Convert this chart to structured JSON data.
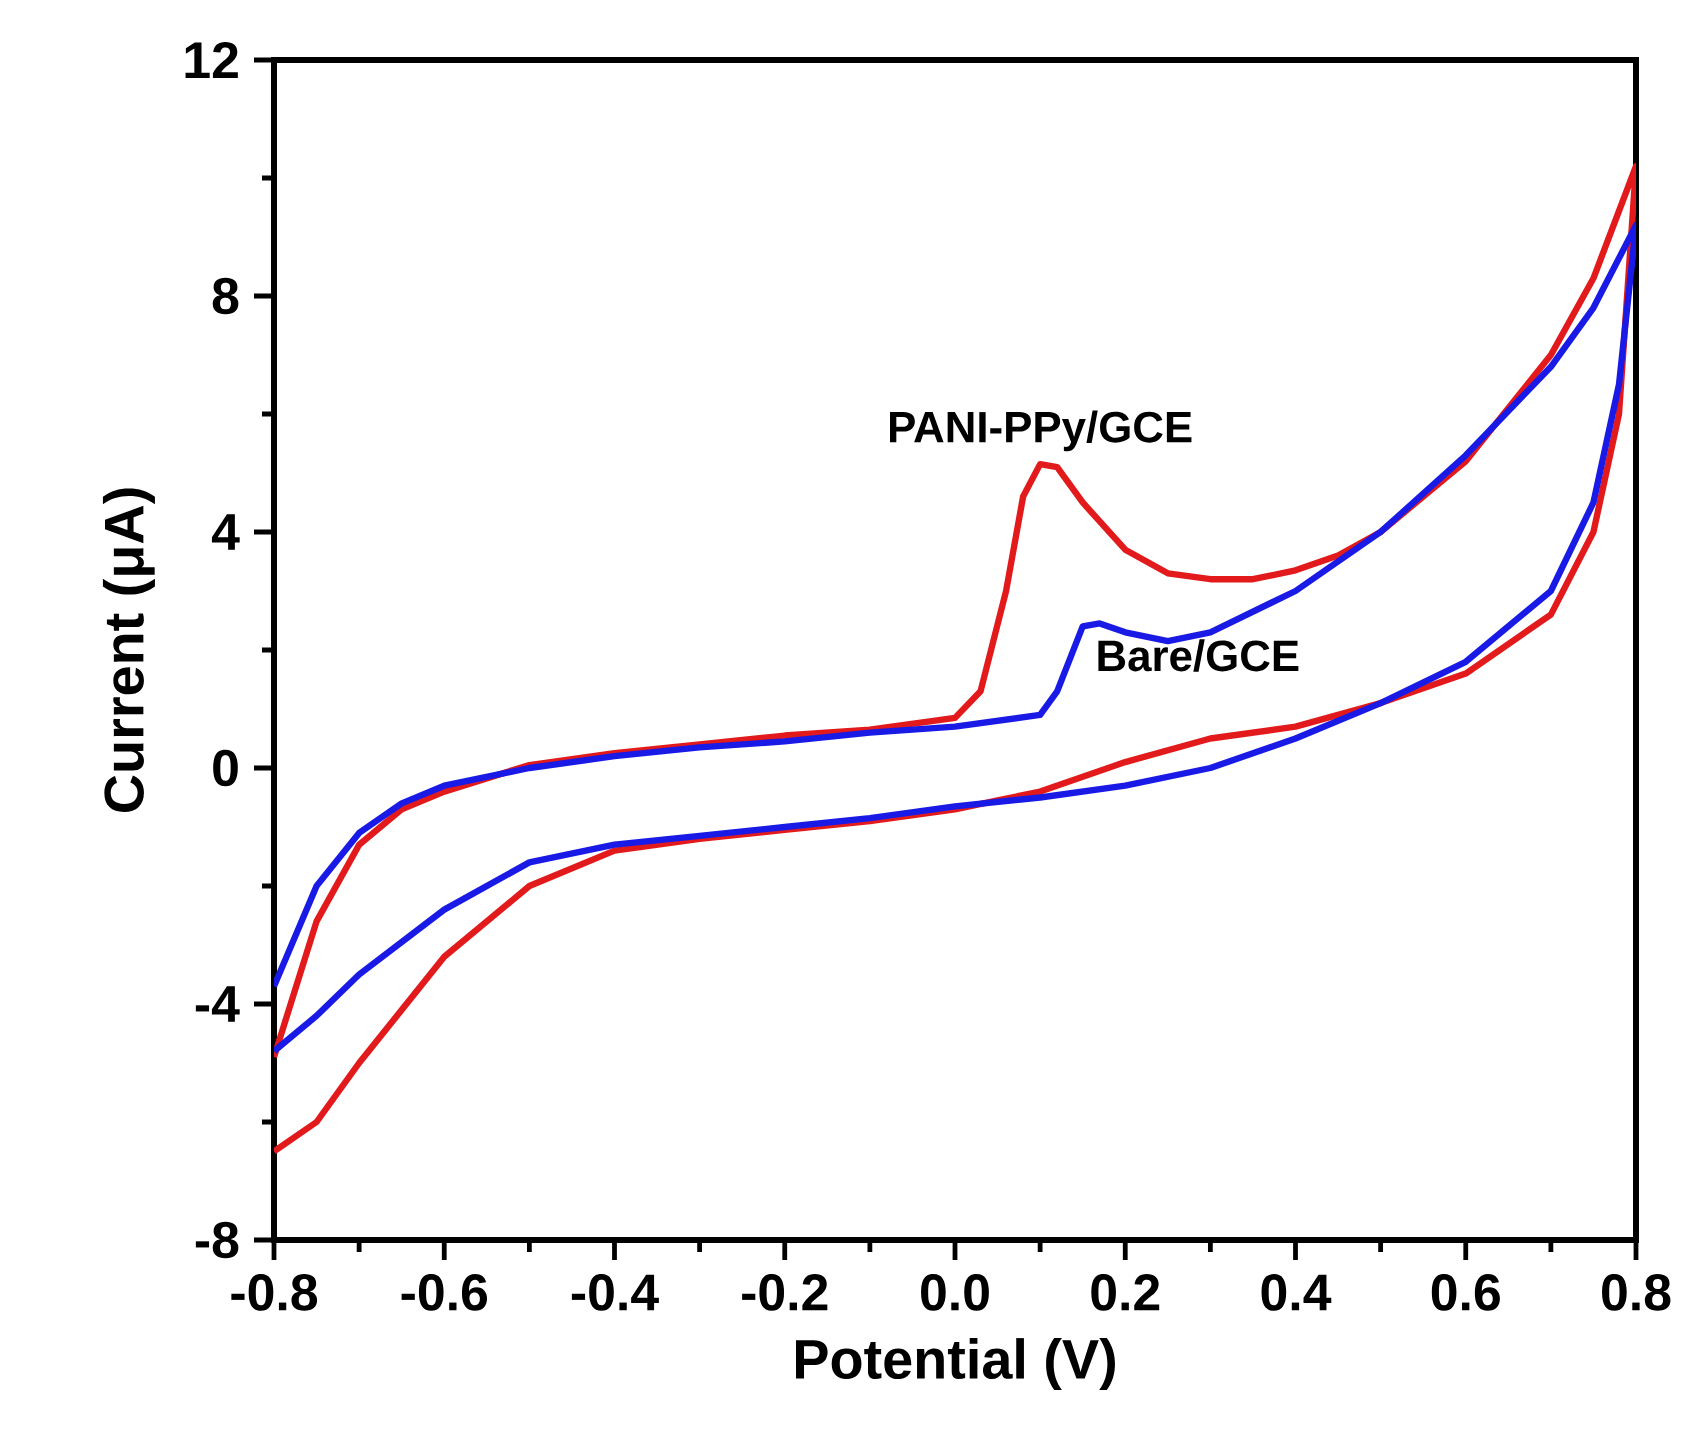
{
  "chart_data": {
    "type": "line",
    "xlabel": "Potential (V)",
    "ylabel": "Current (μA)",
    "xlim": [
      -0.8,
      0.8
    ],
    "ylim": [
      -8,
      12
    ],
    "xticks": [
      -0.8,
      -0.6,
      -0.4,
      -0.2,
      {
        "value": 0,
        "label": "0.0"
      },
      0.2,
      0.4,
      0.6,
      0.8
    ],
    "yticks": [
      -8,
      -4,
      0,
      4,
      8,
      12
    ],
    "grid": false,
    "marker": "none",
    "line_style": "solid",
    "series": [
      {
        "color": "#e31a1c",
        "x": [
          -0.8,
          -0.75,
          -0.7,
          -0.65,
          -0.6,
          -0.5,
          -0.4,
          -0.3,
          -0.2,
          -0.1,
          0.0,
          0.03,
          0.06,
          0.08,
          0.1,
          0.12,
          0.15,
          0.2,
          0.25,
          0.3,
          0.35,
          0.4,
          0.45,
          0.5,
          0.6,
          0.7,
          0.75,
          0.8,
          0.78,
          0.75,
          0.7,
          0.6,
          0.5,
          0.4,
          0.3,
          0.2,
          0.1,
          0.05,
          0.0,
          -0.1,
          -0.2,
          -0.3,
          -0.4,
          -0.5,
          -0.6,
          -0.7,
          -0.75,
          -0.8
        ],
        "values": [
          -4.9,
          -2.6,
          -1.3,
          -0.7,
          -0.4,
          0.05,
          0.25,
          0.4,
          0.55,
          0.65,
          0.85,
          1.3,
          3.0,
          4.6,
          5.15,
          5.1,
          4.5,
          3.7,
          3.3,
          3.2,
          3.2,
          3.35,
          3.6,
          4.0,
          5.2,
          7.0,
          8.3,
          10.2,
          6.0,
          4.0,
          2.6,
          1.6,
          1.1,
          0.7,
          0.5,
          0.1,
          -0.4,
          -0.55,
          -0.7,
          -0.9,
          -1.05,
          -1.2,
          -1.4,
          -2.0,
          -3.2,
          -5.0,
          -6.0,
          -6.5
        ]
      },
      {
        "color": "#1a1ae6",
        "x": [
          -0.8,
          -0.75,
          -0.7,
          -0.65,
          -0.6,
          -0.5,
          -0.4,
          -0.3,
          -0.2,
          -0.1,
          0.0,
          0.1,
          0.12,
          0.15,
          0.17,
          0.2,
          0.25,
          0.3,
          0.4,
          0.5,
          0.6,
          0.7,
          0.75,
          0.8,
          0.78,
          0.75,
          0.7,
          0.6,
          0.5,
          0.4,
          0.3,
          0.2,
          0.1,
          0.0,
          -0.1,
          -0.2,
          -0.3,
          -0.4,
          -0.5,
          -0.6,
          -0.7,
          -0.75,
          -0.8
        ],
        "values": [
          -3.7,
          -2.0,
          -1.1,
          -0.6,
          -0.3,
          0.0,
          0.2,
          0.35,
          0.45,
          0.6,
          0.7,
          0.9,
          1.3,
          2.4,
          2.45,
          2.3,
          2.15,
          2.3,
          3.0,
          4.0,
          5.3,
          6.8,
          7.8,
          9.2,
          6.5,
          4.5,
          3.0,
          1.8,
          1.1,
          0.5,
          0.0,
          -0.3,
          -0.5,
          -0.65,
          -0.85,
          -1.0,
          -1.15,
          -1.3,
          -1.6,
          -2.4,
          -3.5,
          -4.2,
          -4.8
        ]
      }
    ],
    "annotations": [
      {
        "text": "PANI-PPy/GCE",
        "x": 0.1,
        "y": 5.15
      },
      {
        "text": "Bare/GCE",
        "x": 0.15,
        "y": 2.4
      }
    ]
  }
}
